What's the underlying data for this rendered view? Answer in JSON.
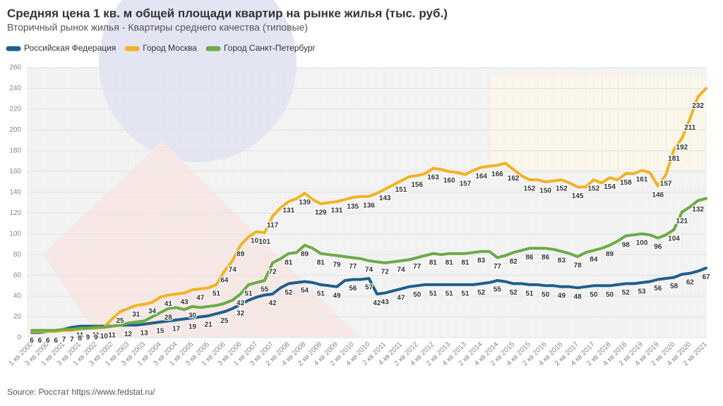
{
  "chart_data": {
    "type": "line",
    "title": "Средняя цена 1 кв. м общей площади квартир на рынке жилья (тыс. руб.)",
    "subtitle": "Вторичный рынок жилья - Квартиры среднего качества (типовые)",
    "source": "Source: Росстат https://www.fedstat.ru/",
    "categories": [
      "1 кв 2000",
      null,
      "3 кв 2000",
      null,
      "1 кв 2001",
      null,
      "3 кв 2001",
      null,
      "1 кв 2002",
      null,
      "3 кв 2002",
      null,
      "1 кв 2003",
      null,
      "3 кв 2003",
      null,
      "1 кв 2004",
      null,
      "3 кв 2004",
      null,
      "1 кв 2005",
      null,
      "3 кв 2005",
      null,
      "1 кв 2006",
      null,
      "3 кв 2006",
      null,
      "1 кв 2007",
      null,
      "3 кв 2007",
      null,
      "2 кв 2008",
      null,
      "4 кв 2008",
      null,
      "2 кв 2009",
      null,
      "4 кв 2009",
      null,
      "2 кв 2010",
      null,
      "4 кв 2010",
      null,
      "2 кв 2011",
      null,
      "4 кв 2011",
      null,
      "2 кв 2012",
      null,
      "4 кв 2012",
      null,
      "2 кв 2013",
      null,
      "4 кв 2013",
      null,
      "2 кв 2014",
      null,
      "4 кв 2014",
      null,
      "2 кв 2015",
      null,
      "4 кв 2015",
      null,
      "2 кв 2016",
      null,
      "4 кв 2016",
      null,
      "2 кв 2017",
      null,
      "4 кв 2017",
      null,
      "2 кв 2018",
      null,
      "4 кв 2018",
      null,
      "2 кв 2019",
      null,
      "4 кв 2019",
      null,
      "2 кв 2020",
      null,
      "4 кв 2020",
      null,
      "2 кв 2021"
    ],
    "series": [
      {
        "name": "Российская Федерация",
        "color": "#1f5f8b",
        "values": [
          5,
          5,
          6,
          7,
          8,
          10,
          11,
          11,
          11,
          11,
          11,
          12,
          12,
          12,
          13,
          14,
          15,
          16,
          17,
          18,
          19,
          20,
          21,
          23,
          25,
          28,
          32,
          36,
          39,
          41,
          42,
          48,
          52,
          53,
          54,
          53,
          51,
          50,
          49,
          55,
          56,
          56,
          57,
          42,
          43,
          45,
          47,
          49,
          50,
          51,
          51,
          51,
          51,
          51,
          51,
          51,
          52,
          53,
          55,
          54,
          52,
          52,
          51,
          51,
          50,
          50,
          49,
          49,
          48,
          49,
          50,
          50,
          50,
          51,
          52,
          52,
          53,
          54,
          56,
          57,
          58,
          61,
          62,
          64,
          67
        ],
        "value_labels": [
          null,
          null,
          null,
          null,
          null,
          null,
          "11",
          null,
          "11",
          null,
          "11",
          null,
          "12",
          null,
          "13",
          null,
          "15",
          null,
          "17",
          null,
          "19",
          null,
          "21",
          null,
          "25",
          null,
          "32",
          null,
          null,
          null,
          "42",
          null,
          "52",
          null,
          "54",
          null,
          "51",
          null,
          "49",
          null,
          "56",
          null,
          "57",
          "42",
          "43",
          null,
          "47",
          null,
          "50",
          null,
          "51",
          null,
          "51",
          null,
          "51",
          null,
          "52",
          null,
          "55",
          null,
          "52",
          null,
          "51",
          null,
          "50",
          null,
          "49",
          null,
          "48",
          null,
          "50",
          null,
          "50",
          null,
          "52",
          null,
          "53",
          null,
          "56",
          null,
          "58",
          null,
          "62",
          null,
          "67"
        ]
      },
      {
        "name": "Город Москва",
        "color": "#f0b323",
        "values": [
          6,
          6,
          6,
          6,
          7,
          7,
          8,
          9,
          9,
          10,
          18,
          25,
          28,
          31,
          32,
          34,
          39,
          41,
          42,
          43,
          46,
          47,
          48,
          51,
          64,
          74,
          89,
          97,
          102,
          101,
          117,
          125,
          131,
          134,
          139,
          133,
          129,
          130,
          131,
          133,
          135,
          136,
          136,
          139,
          143,
          147,
          151,
          155,
          156,
          158,
          163,
          162,
          160,
          159,
          157,
          161,
          164,
          165,
          166,
          168,
          162,
          156,
          152,
          152,
          150,
          151,
          152,
          149,
          145,
          145,
          152,
          149,
          154,
          152,
          158,
          158,
          161,
          159,
          146,
          157,
          181,
          192,
          211,
          232,
          240
        ],
        "value_labels": [
          "6",
          "6",
          "6",
          "6",
          "7",
          "7",
          "8",
          "9",
          "9",
          "10",
          null,
          "25",
          null,
          "31",
          null,
          "34",
          null,
          "41",
          null,
          "43",
          null,
          "47",
          null,
          "51",
          "64",
          "74",
          "89",
          null,
          "102",
          "101",
          "117",
          null,
          "131",
          null,
          "139",
          null,
          "129",
          null,
          "131",
          null,
          "135",
          null,
          "136",
          null,
          "143",
          null,
          "151",
          null,
          "156",
          null,
          "163",
          null,
          "160",
          null,
          "157",
          null,
          "164",
          null,
          "166",
          null,
          "162",
          null,
          "152",
          null,
          "150",
          null,
          "152",
          null,
          "145",
          null,
          "152",
          null,
          "154",
          null,
          "158",
          null,
          "161",
          null,
          "146",
          "157",
          "181",
          "192",
          "211",
          "232",
          null
        ]
      },
      {
        "name": "Город Санкт-Петербург",
        "color": "#6aab46",
        "values": [
          7,
          7,
          7,
          7,
          8,
          8,
          9,
          9,
          10,
          10,
          11,
          12,
          14,
          15,
          16,
          20,
          24,
          28,
          29,
          27,
          30,
          29,
          30,
          31,
          33,
          36,
          42,
          51,
          53,
          55,
          72,
          76,
          81,
          82,
          89,
          86,
          81,
          80,
          79,
          78,
          77,
          76,
          74,
          73,
          72,
          73,
          74,
          75,
          77,
          79,
          81,
          80,
          81,
          81,
          81,
          82,
          83,
          83,
          77,
          79,
          82,
          84,
          86,
          86,
          86,
          85,
          83,
          81,
          78,
          82,
          84,
          86,
          89,
          93,
          98,
          99,
          100,
          99,
          96,
          99,
          104,
          121,
          126,
          132,
          134
        ],
        "value_labels": [
          null,
          null,
          null,
          null,
          null,
          null,
          null,
          null,
          null,
          null,
          null,
          null,
          null,
          null,
          null,
          null,
          null,
          "28",
          null,
          null,
          "30",
          null,
          null,
          null,
          null,
          null,
          "42",
          "51",
          null,
          "55",
          "72",
          null,
          "81",
          null,
          "89",
          null,
          "81",
          null,
          "79",
          null,
          "77",
          null,
          "74",
          null,
          "72",
          null,
          "74",
          null,
          "77",
          null,
          "81",
          null,
          "81",
          null,
          "81",
          null,
          "83",
          null,
          "77",
          null,
          "82",
          null,
          "86",
          null,
          "86",
          null,
          "83",
          null,
          "78",
          null,
          "84",
          null,
          "89",
          null,
          "98",
          null,
          "100",
          null,
          "96",
          null,
          "104",
          "121",
          null,
          "132",
          null
        ]
      }
    ],
    "ylim": [
      0,
      260
    ],
    "yticks": [
      0,
      20,
      40,
      60,
      80,
      100,
      120,
      140,
      160,
      180,
      200,
      220,
      240,
      260
    ],
    "grid": true
  }
}
